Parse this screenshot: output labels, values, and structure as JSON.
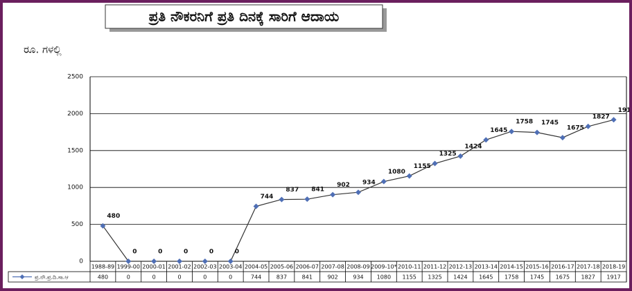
{
  "chart_data": {
    "type": "line",
    "title": "ಪ್ರತಿ ನೌಕರನಿಗೆ ಪ್ರತಿ ದಿನಕ್ಕೆ ಸಾರಿಗೆ ಆದಾಯ",
    "y_label": "ರೂ. ಗಳಲ್ಲಿ",
    "categories": [
      "1988-89",
      "1999-00",
      "2000-01",
      "2001-02",
      "2002-03",
      "2003-04",
      "2004-05",
      "2005-06",
      "2006-07",
      "2007-08",
      "2008-09",
      "2009-10*",
      "2010-11",
      "2011-12",
      "2012-13",
      "2013-14",
      "2014-15",
      "2015-16",
      "2016-17",
      "2017-18",
      "2018-19"
    ],
    "series": [
      {
        "name": "ಪ್ರ.ನೌ.ಪ್ರ.ದಿ.ಸಾ.ಆ",
        "color": "#4f6fb5",
        "values": [
          480,
          0,
          0,
          0,
          0,
          0,
          744,
          837,
          841,
          902,
          934,
          1080,
          1155,
          1325,
          1424,
          1645,
          1758,
          1745,
          1675,
          1827,
          1917
        ]
      }
    ],
    "ylim": [
      0,
      2500
    ],
    "yticks": [
      0,
      500,
      1000,
      1500,
      2000,
      2500
    ],
    "grid": true
  }
}
